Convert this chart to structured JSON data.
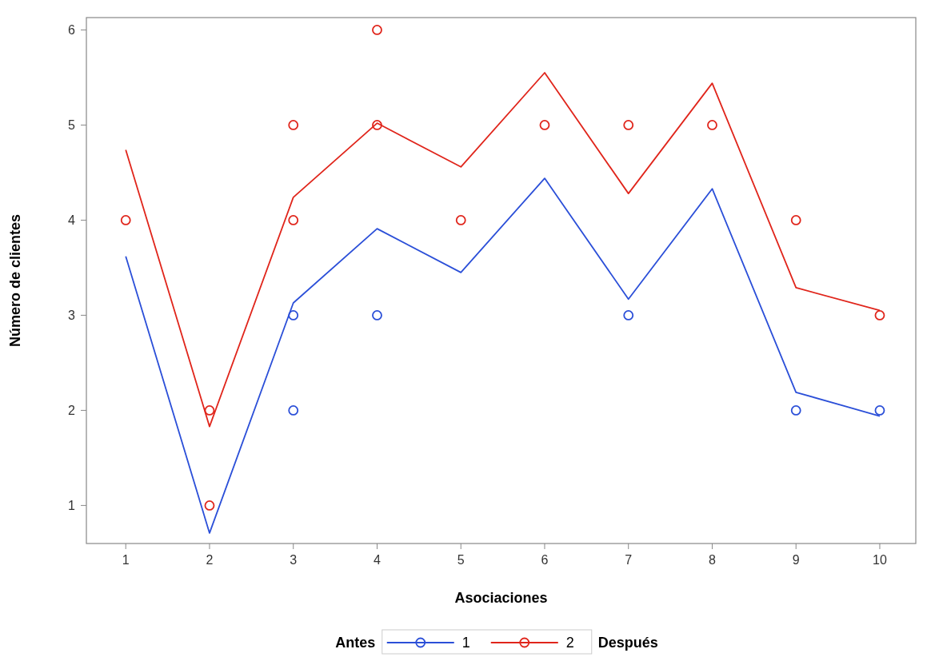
{
  "chart_data": {
    "type": "line",
    "xlabel": "Asociaciones",
    "ylabel": "Número de clientes",
    "legend_title": "Antes",
    "annotations": [
      "Después"
    ],
    "xlim": [
      0.53,
      10.43
    ],
    "ylim": [
      0.6,
      6.13
    ],
    "xticks": [
      1,
      2,
      3,
      4,
      5,
      6,
      7,
      8,
      9,
      10
    ],
    "yticks": [
      1,
      2,
      3,
      4,
      5,
      6
    ],
    "grid": false,
    "legend": "bottom",
    "series": [
      {
        "name": "1",
        "color": "#2b4fd8",
        "x": [
          1,
          2,
          3,
          4,
          5,
          6,
          7,
          8,
          9,
          10
        ],
        "values": [
          3.62,
          0.71,
          3.13,
          3.91,
          3.45,
          4.44,
          3.17,
          4.33,
          2.19,
          1.94
        ]
      },
      {
        "name": "2",
        "color": "#e0251b",
        "x": [
          1,
          2,
          3,
          4,
          5,
          6,
          7,
          8,
          9,
          10
        ],
        "values": [
          4.74,
          1.83,
          4.24,
          5.02,
          4.56,
          5.55,
          4.28,
          5.44,
          3.29,
          3.05
        ]
      },
      {
        "type": "scatter",
        "color": "#2b4fd8",
        "marker": "circle",
        "x": [
          3,
          3,
          4,
          7,
          9,
          10
        ],
        "values": [
          3,
          2,
          3,
          3,
          2,
          2
        ]
      },
      {
        "type": "scatter",
        "color": "#e0251b",
        "marker": "circle",
        "x": [
          1,
          2,
          2,
          3,
          3,
          4,
          4,
          5,
          6,
          7,
          8,
          9,
          10
        ],
        "values": [
          4,
          2,
          1,
          5,
          4,
          6,
          5,
          4,
          5,
          5,
          5,
          4,
          3
        ]
      }
    ]
  }
}
